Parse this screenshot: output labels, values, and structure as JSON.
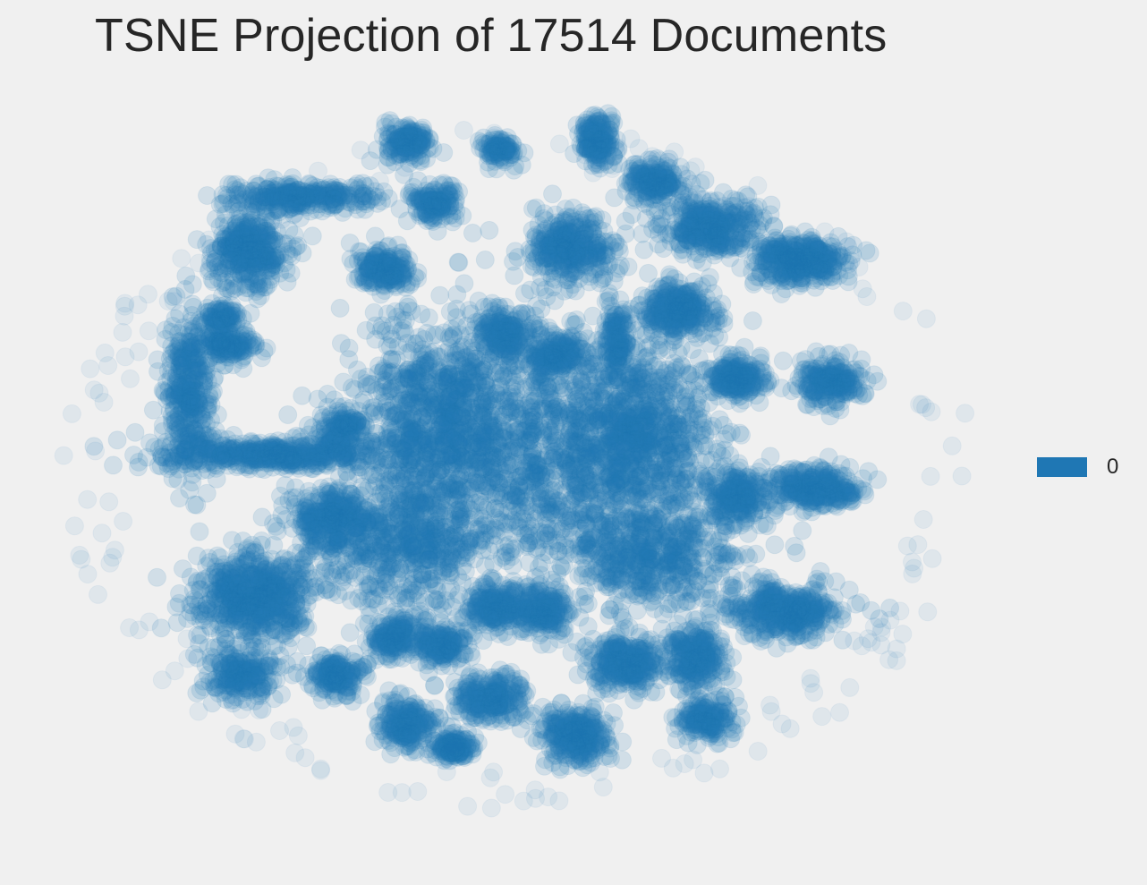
{
  "chart_data": {
    "type": "scatter",
    "title": "TSNE Projection of 17514 Documents",
    "xlabel": "",
    "ylabel": "",
    "grid": false,
    "axes_visible": false,
    "legend": {
      "placement": "right",
      "entries": [
        {
          "label": "0",
          "color": "#1f77b4"
        }
      ]
    },
    "series": [
      {
        "name": "0",
        "color": "#1f77b4",
        "marker_alpha": 0.15,
        "point_count": 17514,
        "xlim": [
          -100,
          100
        ],
        "ylim": [
          -100,
          100
        ],
        "clusters": [
          {
            "x": -71,
            "y": 20,
            "n": 380,
            "sx": 2.5,
            "sy": 10
          },
          {
            "x": -52,
            "y": 4,
            "n": 500,
            "sx": 13,
            "sy": 1.8
          },
          {
            "x": -57,
            "y": -33,
            "n": 650,
            "sx": 6,
            "sy": 5.5
          },
          {
            "x": -58,
            "y": 58,
            "n": 380,
            "sx": 4,
            "sy": 5
          },
          {
            "x": -47,
            "y": 72,
            "n": 300,
            "sx": 8,
            "sy": 2
          },
          {
            "x": -38,
            "y": 10,
            "n": 150,
            "sx": 3,
            "sy": 3
          },
          {
            "x": -29,
            "y": 53,
            "n": 200,
            "sx": 3,
            "sy": 2.5
          },
          {
            "x": -18,
            "y": 70,
            "n": 150,
            "sx": 2.5,
            "sy": 2.5
          },
          {
            "x": -24,
            "y": 86,
            "n": 160,
            "sx": 2.5,
            "sy": 2.5
          },
          {
            "x": -4,
            "y": 84,
            "n": 100,
            "sx": 2,
            "sy": 2
          },
          {
            "x": 17,
            "y": 87,
            "n": 180,
            "sx": 2,
            "sy": 3.2
          },
          {
            "x": 29,
            "y": 76,
            "n": 200,
            "sx": 3,
            "sy": 2.5
          },
          {
            "x": 11,
            "y": 58,
            "n": 350,
            "sx": 4.5,
            "sy": 4.5
          },
          {
            "x": 21,
            "y": 34,
            "n": 140,
            "sx": 1.4,
            "sy": 5
          },
          {
            "x": 41,
            "y": 64,
            "n": 350,
            "sx": 5,
            "sy": 3.5
          },
          {
            "x": 60,
            "y": 55,
            "n": 400,
            "sx": 5,
            "sy": 3
          },
          {
            "x": 47,
            "y": 24,
            "n": 220,
            "sx": 3,
            "sy": 2.5
          },
          {
            "x": 67,
            "y": 23,
            "n": 220,
            "sx": 3.5,
            "sy": 3
          },
          {
            "x": 47,
            "y": -7,
            "n": 220,
            "sx": 3.5,
            "sy": 3.5
          },
          {
            "x": 64,
            "y": -5,
            "n": 300,
            "sx": 5,
            "sy": 2.5
          },
          {
            "x": 57,
            "y": -37,
            "n": 400,
            "sx": 6,
            "sy": 3.5
          },
          {
            "x": 38,
            "y": -49,
            "n": 250,
            "sx": 3,
            "sy": 4
          },
          {
            "x": 23,
            "y": -51,
            "n": 300,
            "sx": 4,
            "sy": 3.5
          },
          {
            "x": 12,
            "y": -70,
            "n": 300,
            "sx": 3.5,
            "sy": 3.5
          },
          {
            "x": -14,
            "y": -73,
            "n": 150,
            "sx": 2,
            "sy": 1.5
          },
          {
            "x": -24,
            "y": -67,
            "n": 220,
            "sx": 3,
            "sy": 3
          },
          {
            "x": -39,
            "y": -54,
            "n": 180,
            "sx": 3,
            "sy": 2.5
          },
          {
            "x": -60,
            "y": -54,
            "n": 220,
            "sx": 3.5,
            "sy": 3.5
          },
          {
            "x": -27,
            "y": -44,
            "n": 180,
            "sx": 2.5,
            "sy": 2.5
          },
          {
            "x": -16,
            "y": -46,
            "n": 180,
            "sx": 3,
            "sy": 2.5
          },
          {
            "x": -5,
            "y": -36,
            "n": 200,
            "sx": 3,
            "sy": 3
          },
          {
            "x": 5,
            "y": -37,
            "n": 200,
            "sx": 3,
            "sy": 3
          },
          {
            "x": -3,
            "y": 36,
            "n": 180,
            "sx": 3,
            "sy": 3
          },
          {
            "x": 8,
            "y": 30,
            "n": 180,
            "sx": 3,
            "sy": 3
          },
          {
            "x": -62,
            "y": 33,
            "n": 160,
            "sx": 2.5,
            "sy": 2
          },
          {
            "x": -64,
            "y": 40,
            "n": 90,
            "sx": 2,
            "sy": 1.5
          },
          {
            "x": 3,
            "y": 2,
            "n": 1500,
            "sx": 19,
            "sy": 16
          },
          {
            "x": -18,
            "y": 15,
            "n": 700,
            "sx": 8,
            "sy": 12
          },
          {
            "x": 25,
            "y": 10,
            "n": 700,
            "sx": 8,
            "sy": 11
          },
          {
            "x": -25,
            "y": -20,
            "n": 500,
            "sx": 9,
            "sy": 8
          },
          {
            "x": 28,
            "y": -22,
            "n": 500,
            "sx": 9,
            "sy": 7
          },
          {
            "x": 34,
            "y": 42,
            "n": 300,
            "sx": 4,
            "sy": 3.5
          },
          {
            "x": -40,
            "y": -13,
            "n": 300,
            "sx": 4,
            "sy": 4
          },
          {
            "x": -6,
            "y": -60,
            "n": 250,
            "sx": 4,
            "sy": 3
          },
          {
            "x": 40,
            "y": -65,
            "n": 180,
            "sx": 3,
            "sy": 3
          }
        ],
        "halo_point_count": 170
      }
    ]
  }
}
